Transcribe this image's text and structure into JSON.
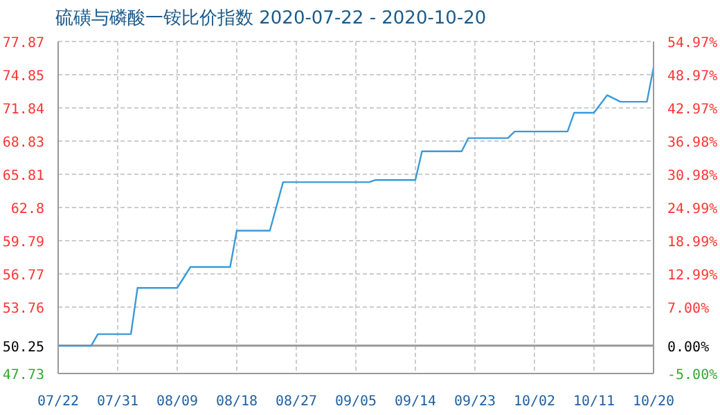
{
  "chart_data": {
    "type": "line",
    "title": "硫磺与磷酸一铵比价指数 2020-07-22 - 2020-10-20",
    "series": [
      {
        "color": "#3a9ad9",
        "x": [
          "2020-07-22",
          "2020-07-27",
          "2020-07-28",
          "2020-08-02",
          "2020-08-03",
          "2020-08-09",
          "2020-08-11",
          "2020-08-17",
          "2020-08-18",
          "2020-08-23",
          "2020-08-25",
          "2020-09-07",
          "2020-09-08",
          "2020-09-14",
          "2020-09-15",
          "2020-09-21",
          "2020-09-22",
          "2020-09-28",
          "2020-09-29",
          "2020-10-07",
          "2020-10-08",
          "2020-10-11",
          "2020-10-13",
          "2020-10-15",
          "2020-10-19",
          "2020-10-20"
        ],
        "values": [
          50.25,
          50.25,
          51.3,
          51.3,
          55.5,
          55.5,
          57.4,
          57.4,
          60.7,
          60.7,
          65.1,
          65.1,
          65.3,
          65.3,
          67.9,
          67.9,
          69.1,
          69.1,
          69.7,
          69.7,
          71.4,
          71.4,
          73.0,
          72.4,
          72.4,
          75.5
        ]
      }
    ],
    "xlim": [
      "2020-07-22",
      "2020-10-20"
    ],
    "xticks": [
      {
        "value": "2020-07-22",
        "label": "07/22"
      },
      {
        "value": "2020-07-31",
        "label": "07/31"
      },
      {
        "value": "2020-08-09",
        "label": "08/09"
      },
      {
        "value": "2020-08-18",
        "label": "08/18"
      },
      {
        "value": "2020-08-27",
        "label": "08/27"
      },
      {
        "value": "2020-09-05",
        "label": "09/05"
      },
      {
        "value": "2020-09-14",
        "label": "09/14"
      },
      {
        "value": "2020-09-23",
        "label": "09/23"
      },
      {
        "value": "2020-10-02",
        "label": "10/02"
      },
      {
        "value": "2020-10-11",
        "label": "10/11"
      },
      {
        "value": "2020-10-20",
        "label": "10/20"
      }
    ],
    "ylim": [
      47.73,
      77.87
    ],
    "yticks": [
      47.73,
      50.25,
      53.76,
      56.77,
      59.79,
      62.8,
      65.81,
      68.83,
      71.84,
      74.85,
      77.87
    ],
    "y2lim": [
      -5.0,
      54.97
    ],
    "y2ticks": [
      {
        "value": -5.0,
        "label": "-5.00%"
      },
      {
        "value": 0,
        "label": "0.00%"
      },
      {
        "value": 7.0,
        "label": "7.00%"
      },
      {
        "value": 12.99,
        "label": "12.99%"
      },
      {
        "value": 18.99,
        "label": "18.99%"
      },
      {
        "value": 24.99,
        "label": "24.99%"
      },
      {
        "value": 30.98,
        "label": "30.98%"
      },
      {
        "value": 36.98,
        "label": "36.98%"
      },
      {
        "value": 42.97,
        "label": "42.97%"
      },
      {
        "value": 48.97,
        "label": "48.97%"
      },
      {
        "value": 54.97,
        "label": "54.97%"
      }
    ],
    "ref_lines": [
      {
        "axis": "y",
        "value": 50.25,
        "color": "#999999"
      }
    ],
    "grid": true,
    "marker": "none",
    "line_style": "solid"
  }
}
